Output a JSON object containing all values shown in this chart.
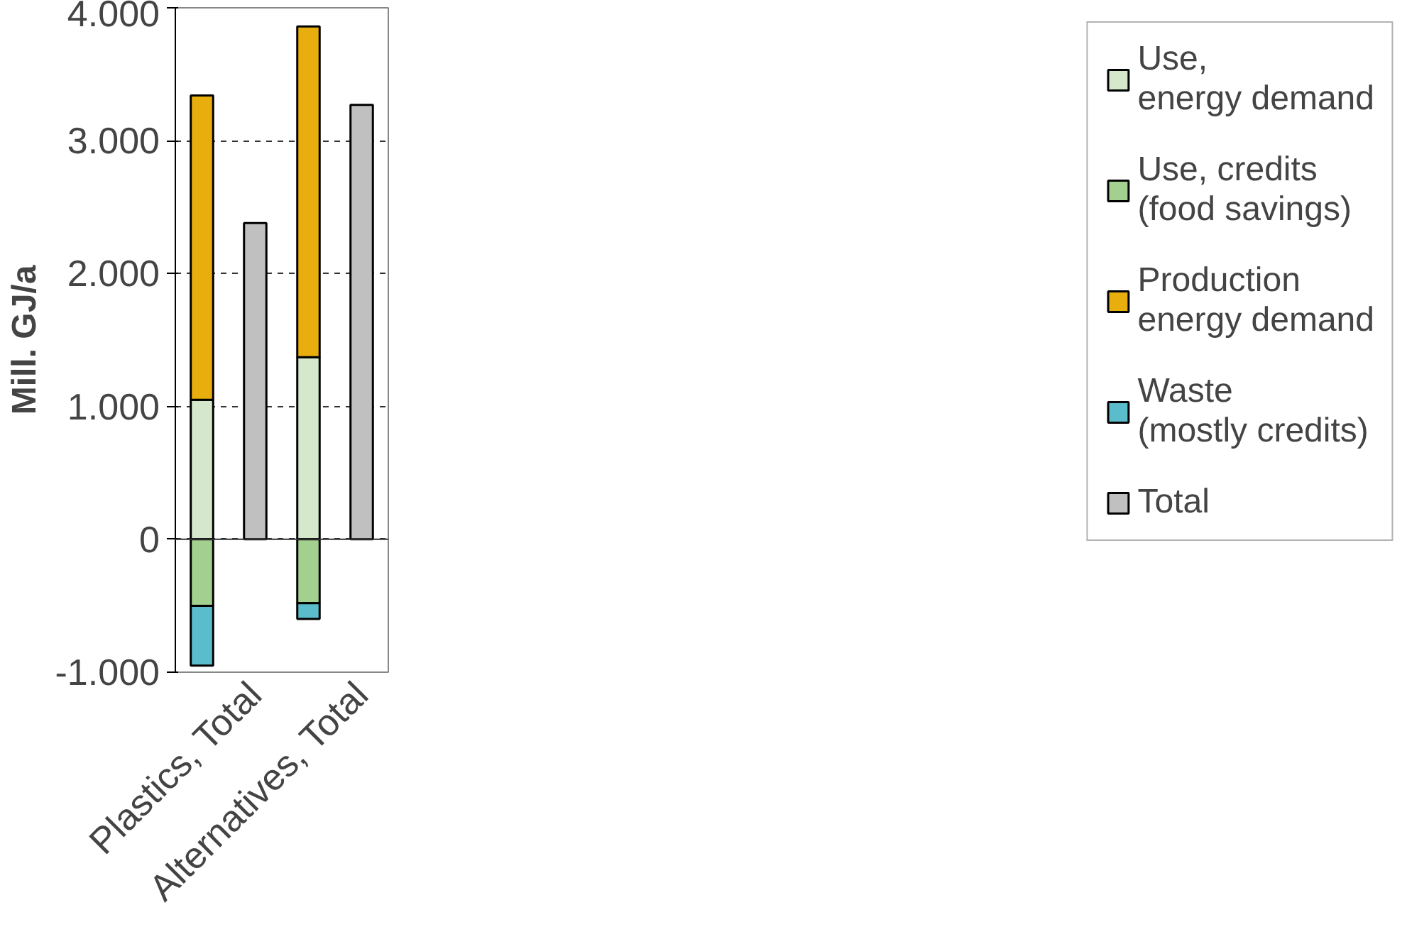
{
  "chart_data": {
    "type": "bar",
    "stacked": true,
    "ylabel": "Mill. GJ/a",
    "categories": [
      null,
      "Plastics, Total",
      null,
      "Alternatives, Total"
    ],
    "series": [
      {
        "name": "Use,\nenergy demand",
        "color": "#d6e8cc",
        "values": [
          1050,
          null,
          1370,
          null
        ]
      },
      {
        "name": "Use, credits\n(food savings)",
        "color": "#a4d08f",
        "values": [
          -500,
          null,
          -480,
          null
        ]
      },
      {
        "name": "Production\nenergy demand",
        "color": "#e8ae0e",
        "values": [
          2290,
          null,
          2490,
          null
        ]
      },
      {
        "name": "Waste\n(mostly credits)",
        "color": "#5bbccc",
        "values": [
          -450,
          null,
          -120,
          null
        ]
      },
      {
        "name": "Total",
        "color": "#c0c0c0",
        "values": [
          null,
          2380,
          null,
          3270
        ]
      }
    ],
    "ylim": [
      -1000,
      4000
    ],
    "yticks": [
      {
        "value": -1000,
        "label": "-1.000"
      },
      0,
      {
        "value": 1000,
        "label": "1.000"
      },
      {
        "value": 2000,
        "label": "2.000"
      },
      {
        "value": 3000,
        "label": "3.000"
      },
      {
        "value": 4000,
        "label": "4.000"
      }
    ],
    "grid": "y",
    "legend": "right"
  }
}
